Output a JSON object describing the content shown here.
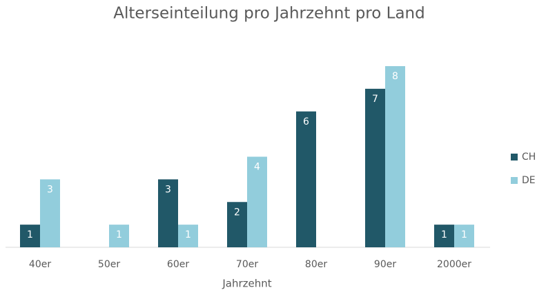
{
  "chart_data": {
    "type": "bar",
    "title": "Alterseinteilung pro Jahrzehnt pro Land",
    "x_label": "Jahrzehnt",
    "categories": [
      "40er",
      "50er",
      "60er",
      "70er",
      "80er",
      "90er",
      "2000er"
    ],
    "series": [
      {
        "name": "CH",
        "color": "#215868",
        "values": [
          1,
          null,
          3,
          2,
          6,
          7,
          1
        ]
      },
      {
        "name": "DE",
        "color": "#92cddc",
        "values": [
          3,
          1,
          1,
          4,
          null,
          8,
          1
        ]
      }
    ],
    "ylim": [
      0,
      8
    ],
    "legend": "right"
  }
}
